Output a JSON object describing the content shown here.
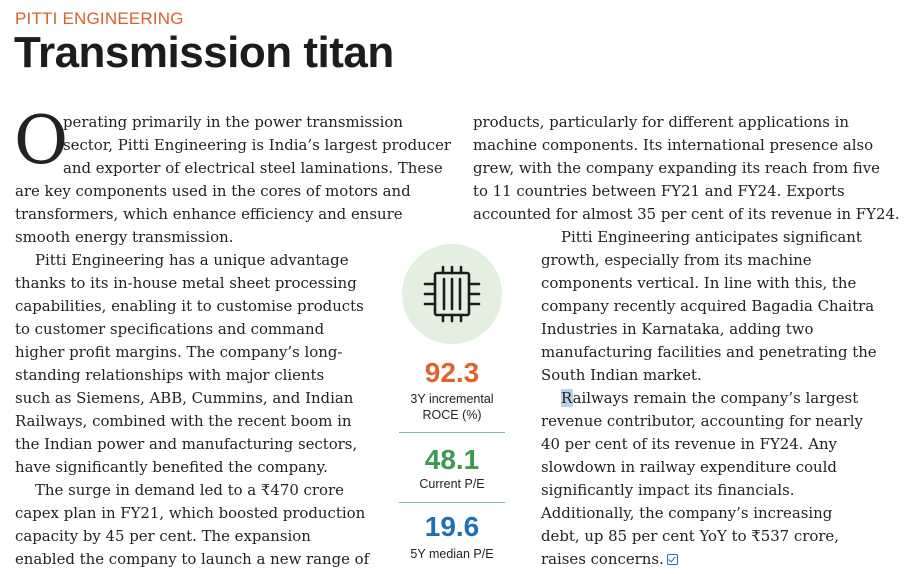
{
  "kicker": "PITTI ENGINEERING",
  "headline": "Transmission titan",
  "dropcap": "O",
  "left_column": [
    {
      "text": "perating primarily in the power transmission",
      "x": 63
    },
    {
      "text": "sector, Pitti Engineering is India’s largest producer",
      "x": 63
    },
    {
      "text": "and exporter of electrical steel laminations. These",
      "x": 63
    },
    {
      "text": "are key components used in the cores of motors and"
    },
    {
      "text": "transformers, which enhance efficiency and ensure"
    },
    {
      "text": "smooth energy transmission."
    },
    {
      "text": "Pitti Engineering has a unique advantage",
      "indent": true
    },
    {
      "text": "thanks to its in-house metal sheet processing"
    },
    {
      "text": "capabilities, enabling it to customise products"
    },
    {
      "text": "to customer specifications and command"
    },
    {
      "text": "higher profit margins. The company’s long-"
    },
    {
      "text": "standing relationships with major clients"
    },
    {
      "text": "such as Siemens, ABB, Cummins, and Indian"
    },
    {
      "text": "Railways, combined with the recent boom in"
    },
    {
      "text": "the Indian power and manufacturing sectors,"
    },
    {
      "text": "have significantly benefited the company."
    },
    {
      "text": "The surge in demand led to a ₹470 crore",
      "indent": true
    },
    {
      "text": "capex plan in FY21, which boosted production"
    },
    {
      "text": "capacity by 45 per cent. The expansion"
    },
    {
      "text": "enabled the company to launch a new range of"
    }
  ],
  "right_top": [
    "products, particularly for different applications in",
    "machine components. Its international presence also",
    "grew, with the company expanding its reach from five",
    "to 11 countries between FY21 and FY24. Exports",
    "accounted for almost 35 per cent of its revenue in FY24."
  ],
  "right_bottom": [
    {
      "text": "Pitti Engineering anticipates significant",
      "indent": true
    },
    {
      "text": "growth, especially from its machine"
    },
    {
      "text": "components vertical. In line with this, the"
    },
    {
      "text": "company recently acquired Bagadia Chaitra"
    },
    {
      "text": "Industries in Karnataka, adding two"
    },
    {
      "text": "manufacturing facilities and penetrating the"
    },
    {
      "text": "South Indian market."
    },
    {
      "text": "ailways remain the company’s largest",
      "indent": true,
      "highlight": "R"
    },
    {
      "text": "revenue contributor, accounting for nearly"
    },
    {
      "text": "40 per cent of its revenue in FY24. Any"
    },
    {
      "text": "slowdown in railway expenditure could"
    },
    {
      "text": "significantly impact its financials."
    },
    {
      "text": "Additionally, the company’s increasing"
    },
    {
      "text": "debt, up 85 per cent YoY to ₹537 crore,"
    },
    {
      "text": "raises concerns.",
      "endmark": true
    }
  ],
  "stats": [
    {
      "value": "92.3",
      "label_lines": [
        "3Y incremental",
        "ROCE (%)"
      ],
      "color": "#e0632b"
    },
    {
      "value": "48.1",
      "label_lines": [
        "Current P/E"
      ],
      "color": "#3d9a4f"
    },
    {
      "value": "19.6",
      "label_lines": [
        "5Y median P/E"
      ],
      "color": "#1f6fb8"
    }
  ],
  "icon": "electrical-steel-lamination-icon",
  "colors": {
    "accent": "#d9602b",
    "circle": "#e3efdf",
    "divider": "#7bbf90",
    "endmark": "#1f6fb8"
  }
}
